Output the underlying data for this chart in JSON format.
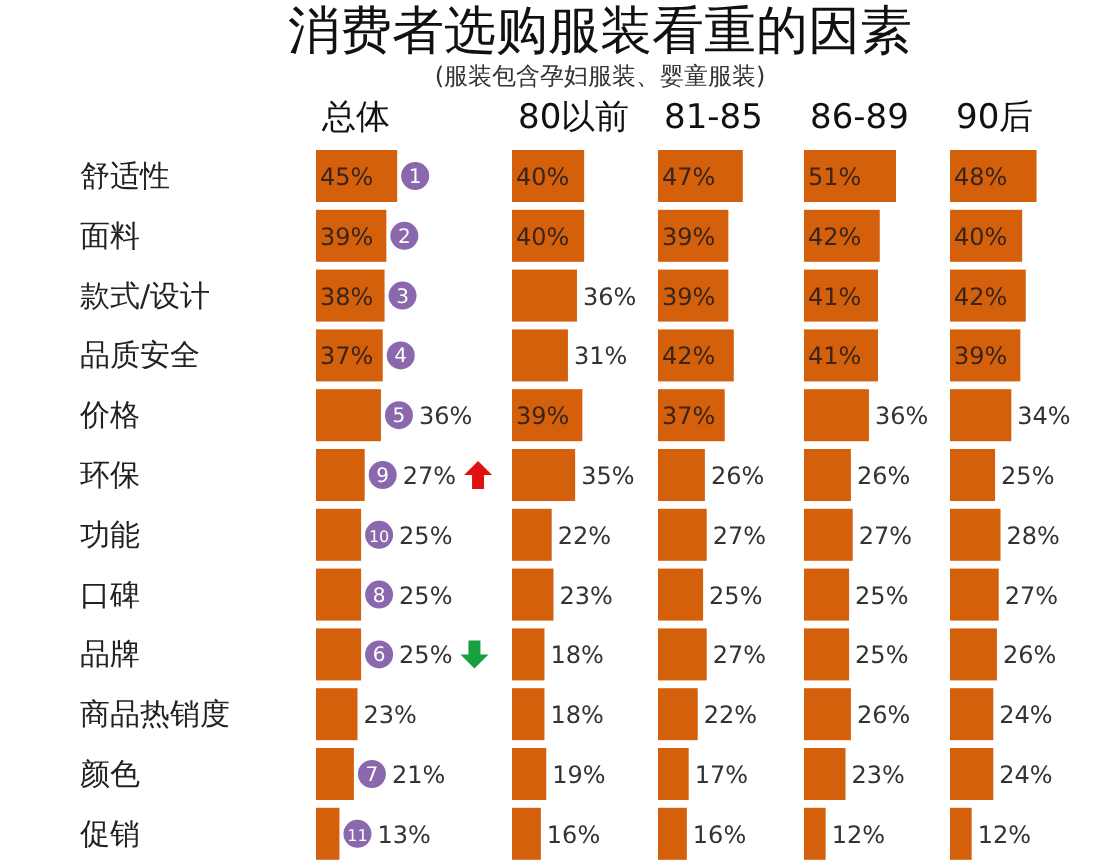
{
  "chart_data": [
    {
      "type": "other",
      "title": "消费者选购服装看重的因素",
      "subtitle": "(服装包含孕妇服装、婴童服装)"
    },
    {
      "type": "bar",
      "orientation": "horizontal",
      "title": "总体",
      "categories": [
        "舒适性",
        "面料",
        "款式/设计",
        "品质安全",
        "价格",
        "环保",
        "功能",
        "口碑",
        "品牌",
        "商品热销度",
        "颜色",
        "促销"
      ],
      "values": [
        45,
        39,
        38,
        37,
        36,
        27,
        25,
        25,
        25,
        23,
        21,
        13
      ],
      "value_labels": [
        "45%",
        "39%",
        "38%",
        "37%",
        "36%",
        "27%",
        "25%",
        "25%",
        "25%",
        "23%",
        "21%",
        "13%"
      ],
      "color": "#d4600c",
      "tick_labels": "y",
      "annotations": [
        {
          "text": "1",
          "x": 45,
          "y": "舒适性"
        },
        {
          "text": "2",
          "x": 39,
          "y": "面料"
        },
        {
          "text": "3",
          "x": 38,
          "y": "款式/设计"
        },
        {
          "text": "4",
          "x": 37,
          "y": "品质安全"
        },
        {
          "text": "5",
          "x": 36,
          "y": "价格"
        },
        {
          "text": "9",
          "x": 27,
          "y": "环保"
        },
        {
          "text": "10",
          "x": 25,
          "y": "功能"
        },
        {
          "text": "8",
          "x": 25,
          "y": "口碑"
        },
        {
          "text": "6",
          "x": 25,
          "y": "品牌"
        },
        {
          "text": "7",
          "x": 21,
          "y": "颜色"
        },
        {
          "text": "11",
          "x": 13,
          "y": "促销"
        }
      ]
    },
    {
      "type": "bar",
      "orientation": "horizontal",
      "title": "80以前",
      "categories": [
        "舒适性",
        "面料",
        "款式/设计",
        "品质安全",
        "价格",
        "环保",
        "功能",
        "口碑",
        "品牌",
        "商品热销度",
        "颜色",
        "促销"
      ],
      "values": [
        40,
        40,
        36,
        31,
        39,
        35,
        22,
        23,
        18,
        18,
        19,
        16
      ],
      "value_labels": [
        "40%",
        "40%",
        "36%",
        "31%",
        "39%",
        "35%",
        "22%",
        "23%",
        "18%",
        "18%",
        "19%",
        "16%"
      ],
      "color": "#d4600c",
      "tick_labels": false
    },
    {
      "type": "bar",
      "orientation": "horizontal",
      "title": "81-85",
      "categories": [
        "舒适性",
        "面料",
        "款式/设计",
        "品质安全",
        "价格",
        "环保",
        "功能",
        "口碑",
        "品牌",
        "商品热销度",
        "颜色",
        "促销"
      ],
      "values": [
        47,
        39,
        39,
        42,
        37,
        26,
        27,
        25,
        27,
        22,
        17,
        16
      ],
      "value_labels": [
        "47%",
        "39%",
        "39%",
        "42%",
        "37%",
        "26%",
        "27%",
        "25%",
        "27%",
        "22%",
        "17%",
        "16%"
      ],
      "color": "#d4600c",
      "tick_labels": false
    },
    {
      "type": "bar",
      "orientation": "horizontal",
      "title": "86-89",
      "categories": [
        "舒适性",
        "面料",
        "款式/设计",
        "品质安全",
        "价格",
        "环保",
        "功能",
        "口碑",
        "品牌",
        "商品热销度",
        "颜色",
        "促销"
      ],
      "values": [
        51,
        42,
        41,
        41,
        36,
        26,
        27,
        25,
        25,
        26,
        23,
        12
      ],
      "value_labels": [
        "51%",
        "42%",
        "41%",
        "41%",
        "36%",
        "26%",
        "27%",
        "25%",
        "25%",
        "26%",
        "23%",
        "12%"
      ],
      "color": "#d4600c",
      "tick_labels": false
    },
    {
      "type": "bar",
      "orientation": "horizontal",
      "title": "90后",
      "categories": [
        "舒适性",
        "面料",
        "款式/设计",
        "品质安全",
        "价格",
        "环保",
        "功能",
        "口碑",
        "品牌",
        "商品热销度",
        "颜色",
        "促销"
      ],
      "values": [
        48,
        40,
        42,
        39,
        34,
        25,
        28,
        27,
        26,
        24,
        24,
        12
      ],
      "value_labels": [
        "48%",
        "40%",
        "42%",
        "39%",
        "34%",
        "25%",
        "28%",
        "27%",
        "26%",
        "24%",
        "24%",
        "12%"
      ],
      "color": "#d4600c",
      "tick_labels": false
    }
  ]
}
